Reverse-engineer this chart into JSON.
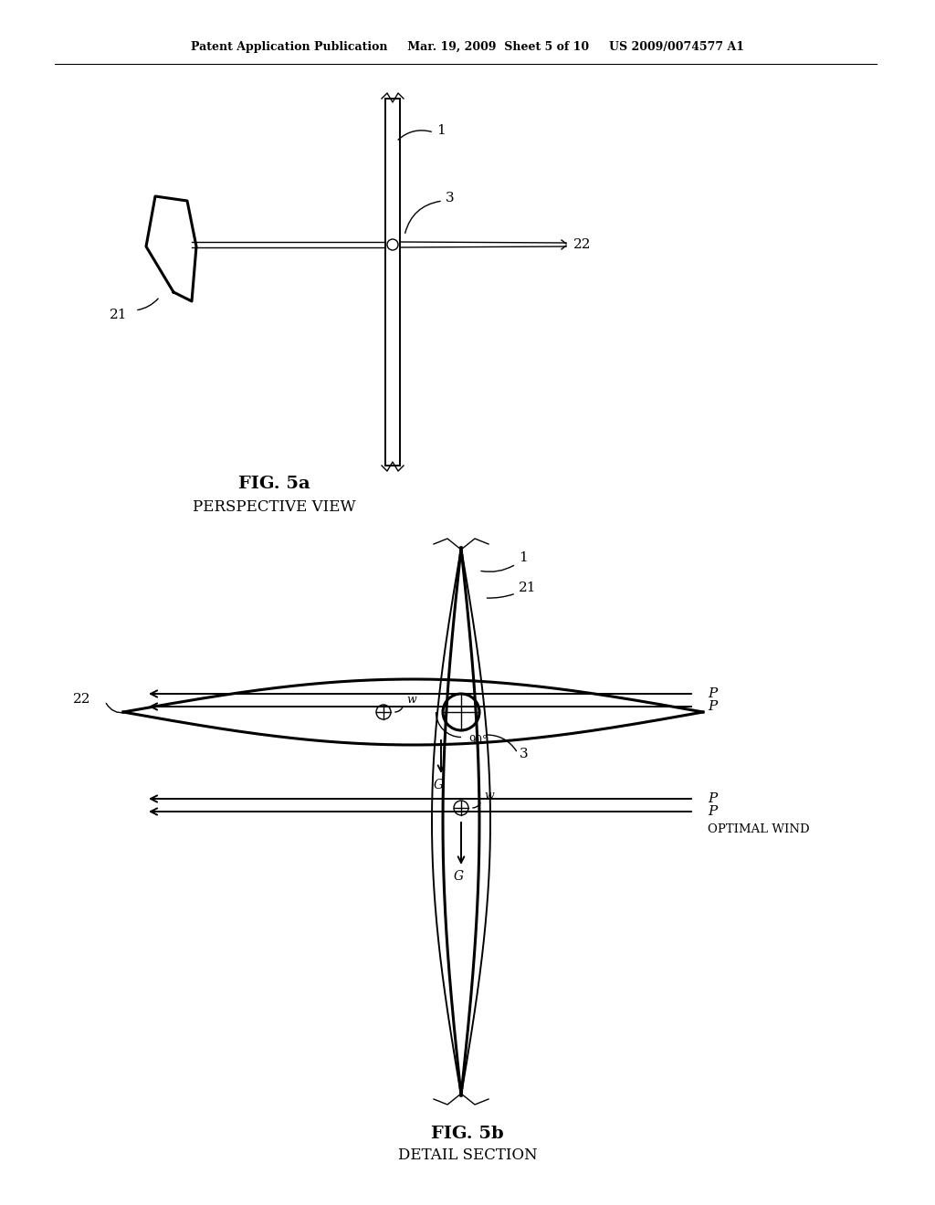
{
  "bg_color": "#ffffff",
  "line_color": "#000000",
  "header_line1": "Patent Application Publication",
  "header_line2": "Mar. 19, 2009  Sheet 5 of 10",
  "header_line3": "US 2009/0074577 A1",
  "fig5a_label": "FIG. 5a",
  "fig5a_sublabel": "PERSPECTIVE VIEW",
  "fig5b_label": "FIG. 5b",
  "fig5b_sublabel": "DETAIL SECTION"
}
